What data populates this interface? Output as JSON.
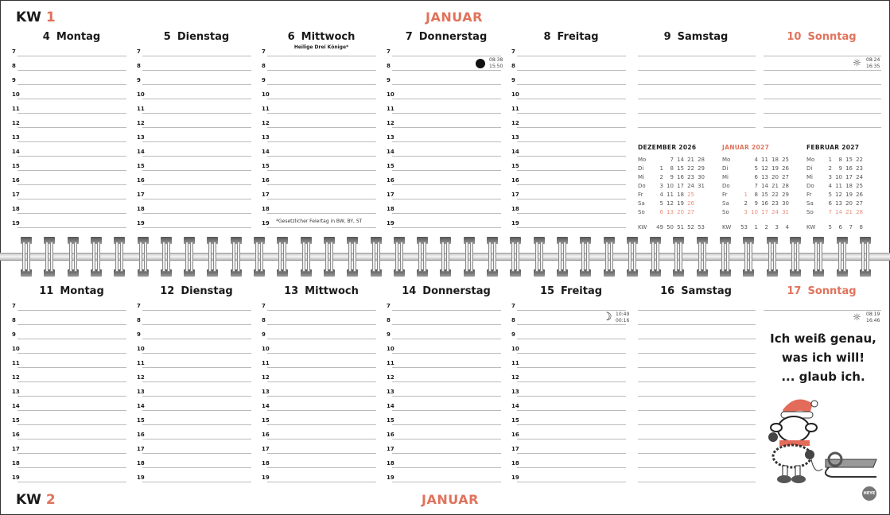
{
  "colors": {
    "accent": "#e0735c",
    "text": "#1a1a1a",
    "line": "#bbbbbb"
  },
  "hours": [
    "7",
    "8",
    "9",
    "10",
    "11",
    "12",
    "13",
    "14",
    "15",
    "16",
    "17",
    "18",
    "19"
  ],
  "week1": {
    "kw_label": "KW",
    "kw_number": "1",
    "month": "JANUAR",
    "days": [
      {
        "num": "4",
        "name": "Montag"
      },
      {
        "num": "5",
        "name": "Dienstag"
      },
      {
        "num": "6",
        "name": "Mittwoch"
      },
      {
        "num": "7",
        "name": "Donnerstag"
      },
      {
        "num": "8",
        "name": "Freitag"
      },
      {
        "num": "9",
        "name": "Samstag"
      },
      {
        "num": "10",
        "name": "Sonntag"
      }
    ],
    "holiday": "Heilige Drei Könige*",
    "footnote": "*Gesetzlicher Feiertag in BW, BY, ST",
    "moon": {
      "icon": "full-moon-icon",
      "rise": "08:38",
      "set": "15:50"
    },
    "sun": {
      "icon": "sun-icon",
      "rise": "08:24",
      "set": "16:35"
    }
  },
  "week2": {
    "kw_label": "KW",
    "kw_number": "2",
    "month": "JANUAR",
    "days": [
      {
        "num": "11",
        "name": "Montag"
      },
      {
        "num": "12",
        "name": "Dienstag"
      },
      {
        "num": "13",
        "name": "Mittwoch"
      },
      {
        "num": "14",
        "name": "Donnerstag"
      },
      {
        "num": "15",
        "name": "Freitag"
      },
      {
        "num": "16",
        "name": "Samstag"
      },
      {
        "num": "17",
        "name": "Sonntag"
      }
    ],
    "moon": {
      "icon": "crescent-moon-icon",
      "rise": "10:49",
      "set": "00:16"
    },
    "sun": {
      "icon": "sun-icon",
      "rise": "08:19",
      "set": "16:46"
    }
  },
  "mini_calendars": [
    {
      "title": "DEZEMBER 2026",
      "current": false,
      "rows": [
        [
          "Mo",
          "",
          "7",
          "14",
          "21",
          "28"
        ],
        [
          "Di",
          "1",
          "8",
          "15",
          "22",
          "29"
        ],
        [
          "Mi",
          "2",
          "9",
          "16",
          "23",
          "30"
        ],
        [
          "Do",
          "3",
          "10",
          "17",
          "24",
          "31"
        ],
        [
          "Fr",
          "4",
          "11",
          "18",
          "25",
          ""
        ],
        [
          "Sa",
          "5",
          "12",
          "19",
          "26",
          ""
        ],
        [
          "So",
          "6",
          "13",
          "20",
          "27",
          ""
        ]
      ],
      "highlight": [
        "Fr:25",
        "Sa:26",
        "So:*"
      ],
      "kw": [
        "KW",
        "49",
        "50",
        "51",
        "52",
        "53"
      ]
    },
    {
      "title": "JANUAR 2027",
      "current": true,
      "rows": [
        [
          "Mo",
          "",
          "4",
          "11",
          "18",
          "25"
        ],
        [
          "Di",
          "",
          "5",
          "12",
          "19",
          "26"
        ],
        [
          "Mi",
          "",
          "6",
          "13",
          "20",
          "27"
        ],
        [
          "Do",
          "",
          "7",
          "14",
          "21",
          "28"
        ],
        [
          "Fr",
          "1",
          "8",
          "15",
          "22",
          "29"
        ],
        [
          "Sa",
          "2",
          "9",
          "16",
          "23",
          "30"
        ],
        [
          "So",
          "3",
          "10",
          "17",
          "24",
          "31"
        ]
      ],
      "highlight": [
        "Fr:1",
        "So:*"
      ],
      "kw": [
        "KW",
        "53",
        "1",
        "2",
        "3",
        "4"
      ]
    },
    {
      "title": "FEBRUAR 2027",
      "current": false,
      "rows": [
        [
          "Mo",
          "1",
          "8",
          "15",
          "22"
        ],
        [
          "Di",
          "2",
          "9",
          "16",
          "23"
        ],
        [
          "Mi",
          "3",
          "10",
          "17",
          "24"
        ],
        [
          "Do",
          "4",
          "11",
          "18",
          "25"
        ],
        [
          "Fr",
          "5",
          "12",
          "19",
          "26"
        ],
        [
          "Sa",
          "6",
          "13",
          "20",
          "27"
        ],
        [
          "So",
          "7",
          "14",
          "21",
          "28"
        ]
      ],
      "highlight": [
        "So:*"
      ],
      "kw": [
        "KW",
        "5",
        "6",
        "7",
        "8"
      ]
    }
  ],
  "quote": {
    "line1": "Ich weiß genau,",
    "line2": "was ich will!",
    "line3": "... glaub ich."
  },
  "illustration": {
    "description_icon": "sheep-with-sled-illustration",
    "logo": "HEYE"
  }
}
